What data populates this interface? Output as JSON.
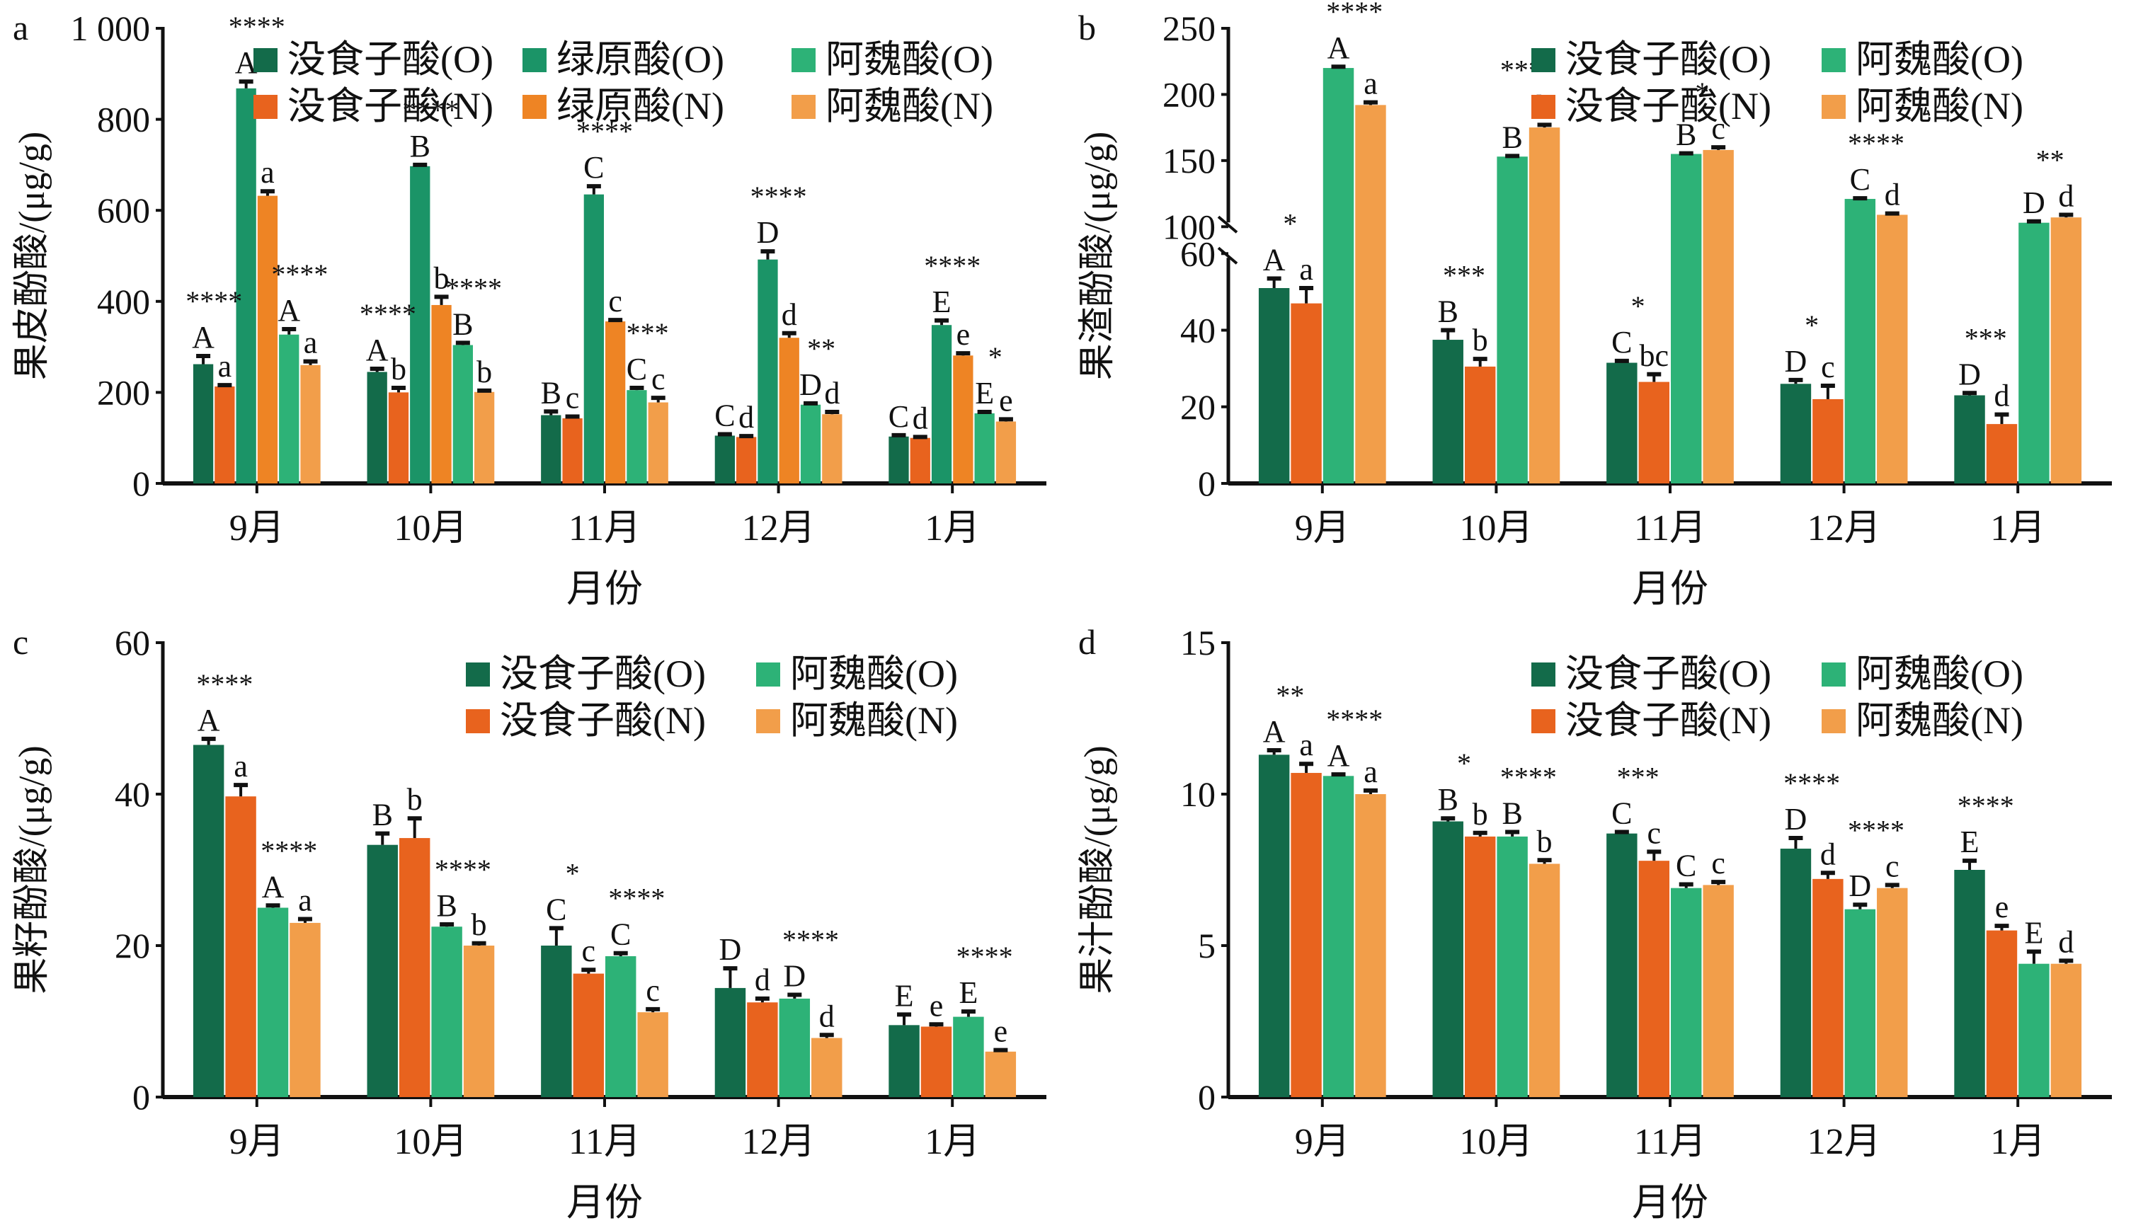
{
  "colors": {
    "gallic_O": "#136B4A",
    "gallic_N": "#E8631E",
    "chlorogenic_O": "#1B9467",
    "chlorogenic_N": "#EE8424",
    "ferulic_O": "#2DB277",
    "ferulic_N": "#F29E4A"
  },
  "chart_data": [
    {
      "id": "a",
      "type": "bar",
      "panel_label": "a",
      "xlabel": "月份",
      "ylabel": "果皮酚酸/(μg/g)",
      "categories": [
        "9月",
        "10月",
        "11月",
        "12月",
        "1月"
      ],
      "ylim": [
        0,
        1000
      ],
      "yticks": [
        0,
        200,
        400,
        600,
        800,
        1000
      ],
      "ytick_labels": [
        "0",
        "200",
        "400",
        "600",
        "800",
        "1 000"
      ],
      "legend": {
        "position": "top-right",
        "columns": 3,
        "order": [
          "gallic_O",
          "chlorogenic_O",
          "ferulic_O",
          "gallic_N",
          "chlorogenic_N",
          "ferulic_N"
        ]
      },
      "series": [
        {
          "key": "gallic_O",
          "name": "没食子酸(O)",
          "values": [
            262,
            245,
            150,
            105,
            103
          ],
          "errors": [
            18,
            7,
            8,
            3,
            3
          ],
          "letters": [
            "A",
            "A",
            "B",
            "C",
            "C"
          ]
        },
        {
          "key": "gallic_N",
          "name": "没食子酸(N)",
          "values": [
            213,
            200,
            143,
            102,
            100
          ],
          "errors": [
            3,
            10,
            4,
            2,
            2
          ],
          "letters": [
            "a",
            "b",
            "c",
            "d",
            "d"
          ]
        },
        {
          "key": "chlorogenic_O",
          "name": "绿原酸(O)",
          "values": [
            868,
            697,
            635,
            492,
            348
          ],
          "errors": [
            15,
            3,
            18,
            18,
            10
          ],
          "letters": [
            "A",
            "B",
            "C",
            "D",
            "E"
          ]
        },
        {
          "key": "chlorogenic_N",
          "name": "绿原酸(N)",
          "values": [
            632,
            392,
            356,
            320,
            281
          ],
          "errors": [
            10,
            18,
            3,
            10,
            5
          ],
          "letters": [
            "a",
            "b",
            "c",
            "d",
            "e"
          ]
        },
        {
          "key": "ferulic_O",
          "name": "阿魏酸(O)",
          "values": [
            327,
            304,
            205,
            173,
            154
          ],
          "errors": [
            12,
            5,
            5,
            3,
            3
          ],
          "letters": [
            "A",
            "B",
            "C",
            "D",
            "E"
          ]
        },
        {
          "key": "ferulic_N",
          "name": "阿魏酸(N)",
          "values": [
            260,
            201,
            178,
            152,
            136
          ],
          "errors": [
            8,
            3,
            10,
            5,
            5
          ],
          "letters": [
            "a",
            "b",
            "c",
            "d",
            "e"
          ]
        }
      ],
      "significance": [
        {
          "category": 0,
          "pair": "gallic",
          "label": "****"
        },
        {
          "category": 0,
          "pair": "chlorogenic",
          "label": "****"
        },
        {
          "category": 0,
          "pair": "ferulic",
          "label": "****"
        },
        {
          "category": 1,
          "pair": "gallic",
          "label": "****"
        },
        {
          "category": 1,
          "pair": "chlorogenic",
          "label": "****"
        },
        {
          "category": 1,
          "pair": "ferulic",
          "label": "****"
        },
        {
          "category": 2,
          "pair": "chlorogenic",
          "label": "****"
        },
        {
          "category": 2,
          "pair": "ferulic",
          "label": "***"
        },
        {
          "category": 3,
          "pair": "chlorogenic",
          "label": "****"
        },
        {
          "category": 3,
          "pair": "ferulic",
          "label": "**"
        },
        {
          "category": 4,
          "pair": "chlorogenic",
          "label": "****"
        },
        {
          "category": 4,
          "pair": "ferulic",
          "label": "*"
        }
      ]
    },
    {
      "id": "b",
      "type": "bar",
      "panel_label": "b",
      "xlabel": "月份",
      "ylabel": "果渣酚酸/(μg/g)",
      "categories": [
        "9月",
        "10月",
        "11月",
        "12月",
        "1月"
      ],
      "axis_break": {
        "lower": [
          0,
          60
        ],
        "upper": [
          100,
          250
        ]
      },
      "yticks_lower": [
        0,
        20,
        40,
        60
      ],
      "yticks_upper": [
        100,
        150,
        200,
        250
      ],
      "legend": {
        "position": "top-right",
        "columns": 2,
        "order": [
          "gallic_O",
          "ferulic_O",
          "gallic_N",
          "ferulic_N"
        ]
      },
      "series": [
        {
          "key": "gallic_O",
          "name": "没食子酸(O)",
          "values": [
            51,
            37.5,
            31.5,
            26,
            23
          ],
          "errors": [
            2.5,
            2.5,
            0.5,
            1,
            0.6
          ],
          "letters": [
            "A",
            "B",
            "C",
            "D",
            "D"
          ]
        },
        {
          "key": "gallic_N",
          "name": "没食子酸(N)",
          "values": [
            47,
            30.5,
            26.5,
            22,
            15.5
          ],
          "errors": [
            4,
            2,
            2,
            3.5,
            2.5
          ],
          "letters": [
            "a",
            "b",
            "bc",
            "c",
            "d"
          ]
        },
        {
          "key": "ferulic_O",
          "name": "阿魏酸(O)",
          "values": [
            220,
            153,
            155,
            121,
            103
          ],
          "errors": [
            1,
            0.5,
            0.5,
            0.5,
            1
          ],
          "letters": [
            "A",
            "B",
            "B",
            "C",
            "D"
          ]
        },
        {
          "key": "ferulic_N",
          "name": "阿魏酸(N)",
          "values": [
            192,
            175,
            158,
            109,
            107
          ],
          "errors": [
            2,
            2,
            2,
            1,
            2
          ],
          "letters": [
            "a",
            "b",
            "c",
            "d",
            "d"
          ]
        }
      ],
      "significance": [
        {
          "category": 0,
          "pair": "gallic",
          "label": "*"
        },
        {
          "category": 0,
          "pair": "ferulic",
          "label": "****"
        },
        {
          "category": 1,
          "pair": "gallic",
          "label": "***"
        },
        {
          "category": 1,
          "pair": "ferulic",
          "label": "****"
        },
        {
          "category": 2,
          "pair": "gallic",
          "label": "*"
        },
        {
          "category": 2,
          "pair": "ferulic",
          "label": "*"
        },
        {
          "category": 3,
          "pair": "gallic",
          "label": "*"
        },
        {
          "category": 3,
          "pair": "ferulic",
          "label": "****"
        },
        {
          "category": 4,
          "pair": "gallic",
          "label": "***"
        },
        {
          "category": 4,
          "pair": "ferulic",
          "label": "**"
        }
      ]
    },
    {
      "id": "c",
      "type": "bar",
      "panel_label": "c",
      "xlabel": "月份",
      "ylabel": "果籽酚酸/(μg/g)",
      "categories": [
        "9月",
        "10月",
        "11月",
        "12月",
        "1月"
      ],
      "ylim": [
        0,
        60
      ],
      "yticks": [
        0,
        20,
        40,
        60
      ],
      "ytick_labels": [
        "0",
        "20",
        "40",
        "60"
      ],
      "legend": {
        "position": "top-right",
        "columns": 2,
        "order": [
          "gallic_O",
          "ferulic_O",
          "gallic_N",
          "ferulic_N"
        ]
      },
      "series": [
        {
          "key": "gallic_O",
          "name": "没食子酸(O)",
          "values": [
            46.5,
            33.3,
            20,
            14.4,
            9.5
          ],
          "errors": [
            0.8,
            1.5,
            2.3,
            2.6,
            1.4
          ],
          "letters": [
            "A",
            "B",
            "C",
            "D",
            "E"
          ]
        },
        {
          "key": "gallic_N",
          "name": "没食子酸(N)",
          "values": [
            39.7,
            34.2,
            16.3,
            12.5,
            9.3
          ],
          "errors": [
            1.5,
            2.6,
            0.5,
            0.5,
            0.3
          ],
          "letters": [
            "a",
            "b",
            "c",
            "d",
            "e"
          ]
        },
        {
          "key": "ferulic_O",
          "name": "阿魏酸(O)",
          "values": [
            25,
            22.5,
            18.6,
            13,
            10.6
          ],
          "errors": [
            0.3,
            0.3,
            0.4,
            0.5,
            0.7
          ],
          "letters": [
            "A",
            "B",
            "C",
            "D",
            "E"
          ]
        },
        {
          "key": "ferulic_N",
          "name": "阿魏酸(N)",
          "values": [
            23,
            20,
            11.2,
            7.8,
            6
          ],
          "errors": [
            0.5,
            0.3,
            0.4,
            0.4,
            0.2
          ],
          "letters": [
            "a",
            "b",
            "c",
            "d",
            "e"
          ]
        }
      ],
      "significance": [
        {
          "category": 0,
          "pair": "gallic",
          "label": "****"
        },
        {
          "category": 0,
          "pair": "ferulic",
          "label": "****"
        },
        {
          "category": 1,
          "pair": "ferulic",
          "label": "****"
        },
        {
          "category": 2,
          "pair": "gallic",
          "label": "*"
        },
        {
          "category": 2,
          "pair": "ferulic",
          "label": "****"
        },
        {
          "category": 3,
          "pair": "ferulic",
          "label": "****"
        },
        {
          "category": 4,
          "pair": "ferulic",
          "label": "****"
        }
      ]
    },
    {
      "id": "d",
      "type": "bar",
      "panel_label": "d",
      "xlabel": "月份",
      "ylabel": "果汁酚酸/(μg/g)",
      "categories": [
        "9月",
        "10月",
        "11月",
        "12月",
        "1月"
      ],
      "ylim": [
        0,
        15
      ],
      "yticks": [
        0,
        5,
        10,
        15
      ],
      "ytick_labels": [
        "0",
        "5",
        "10",
        "15"
      ],
      "legend": {
        "position": "top-right",
        "columns": 2,
        "order": [
          "gallic_O",
          "ferulic_O",
          "gallic_N",
          "ferulic_N"
        ]
      },
      "series": [
        {
          "key": "gallic_O",
          "name": "没食子酸(O)",
          "values": [
            11.3,
            9.1,
            8.7,
            8.2,
            7.5
          ],
          "errors": [
            0.15,
            0.1,
            0.05,
            0.35,
            0.3
          ],
          "letters": [
            "A",
            "B",
            "C",
            "D",
            "E"
          ]
        },
        {
          "key": "gallic_N",
          "name": "没食子酸(N)",
          "values": [
            10.7,
            8.6,
            7.8,
            7.2,
            5.5
          ],
          "errors": [
            0.3,
            0.12,
            0.3,
            0.2,
            0.15
          ],
          "letters": [
            "a",
            "b",
            "c",
            "d",
            "e"
          ]
        },
        {
          "key": "ferulic_O",
          "name": "阿魏酸(O)",
          "values": [
            10.6,
            8.6,
            6.9,
            6.2,
            4.4
          ],
          "errors": [
            0.05,
            0.15,
            0.12,
            0.15,
            0.4
          ],
          "letters": [
            "A",
            "B",
            "C",
            "D",
            "E"
          ]
        },
        {
          "key": "ferulic_N",
          "name": "阿魏酸(N)",
          "values": [
            10,
            7.7,
            7,
            6.9,
            4.4
          ],
          "errors": [
            0.12,
            0.12,
            0.1,
            0.1,
            0.1
          ],
          "letters": [
            "a",
            "b",
            "c",
            "c",
            "d"
          ]
        }
      ],
      "significance": [
        {
          "category": 0,
          "pair": "gallic",
          "label": "**"
        },
        {
          "category": 0,
          "pair": "ferulic",
          "label": "****"
        },
        {
          "category": 1,
          "pair": "gallic",
          "label": "*"
        },
        {
          "category": 1,
          "pair": "ferulic",
          "label": "****"
        },
        {
          "category": 2,
          "pair": "gallic",
          "label": "***"
        },
        {
          "category": 3,
          "pair": "gallic",
          "label": "****"
        },
        {
          "category": 3,
          "pair": "ferulic",
          "label": "****"
        },
        {
          "category": 4,
          "pair": "gallic",
          "label": "****"
        }
      ]
    }
  ]
}
